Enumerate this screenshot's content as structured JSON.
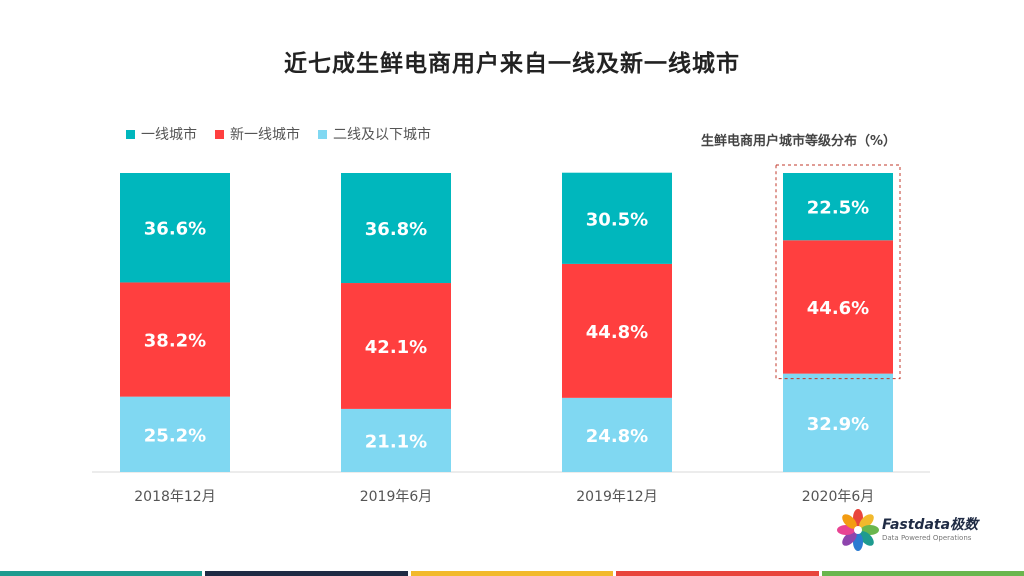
{
  "title": "近七成生鲜电商用户来自一线及新一线城市",
  "subtitle": "生鲜电商用户城市等级分布（%）",
  "legend": [
    {
      "label": "一线城市",
      "color": "#00b7bd"
    },
    {
      "label": "新一线城市",
      "color": "#ff3f3f"
    },
    {
      "label": "二线及以下城市",
      "color": "#80d8f2"
    }
  ],
  "logo": {
    "name": "Fastdata极数",
    "tagline": "Data Powered Operations"
  },
  "footer_colors": [
    "#1e9b8f",
    "#1f2b44",
    "#f2b92c",
    "#e8453c",
    "#6ab64d"
  ],
  "chart_data": {
    "type": "bar",
    "stacked": true,
    "categories": [
      "2018年12月",
      "2019年6月",
      "2019年12月",
      "2020年6月"
    ],
    "series": [
      {
        "name": "二线及以下城市",
        "color": "#80d8f2",
        "values": [
          25.2,
          21.1,
          24.8,
          32.9
        ],
        "labels": [
          "25.2%",
          "21.1%",
          "24.8%",
          "32.9%"
        ]
      },
      {
        "name": "新一线城市",
        "color": "#ff3f3f",
        "values": [
          38.2,
          42.1,
          44.8,
          44.6
        ],
        "labels": [
          "38.2%",
          "42.1%",
          "44.8%",
          "44.6%"
        ]
      },
      {
        "name": "一线城市",
        "color": "#00b7bd",
        "values": [
          36.6,
          36.8,
          30.5,
          22.5
        ],
        "labels": [
          "36.6%",
          "36.8%",
          "30.5%",
          "22.5%"
        ]
      }
    ],
    "ylim": [
      0,
      100
    ],
    "highlight": {
      "category": "2020年6月",
      "series": [
        "一线城市",
        "新一线城市"
      ]
    }
  }
}
